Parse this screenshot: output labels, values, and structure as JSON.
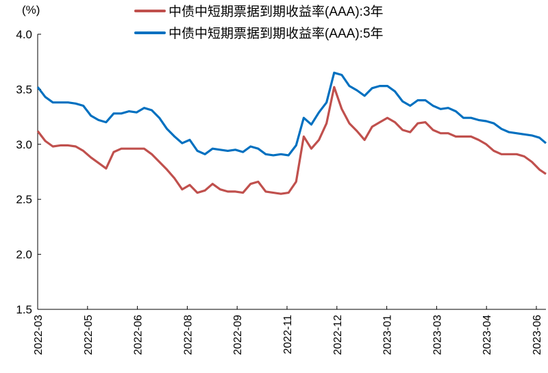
{
  "chart_data": {
    "type": "line",
    "ylabel": "(%)",
    "ylim": [
      1.5,
      4.0
    ],
    "yticks": [
      "4.0",
      "3.5",
      "3.0",
      "2.5",
      "2.0",
      "1.5"
    ],
    "xlim": [
      "2022-03-01",
      "2023-06-12"
    ],
    "xtick_labels": [
      "2022-03",
      "2022-05",
      "2022-06",
      "2022-08",
      "2022-09",
      "2022-11",
      "2022-12",
      "2023-01",
      "2023-03",
      "2023-04",
      "2023-06"
    ],
    "grid": false,
    "legend_position": "top-center",
    "x": [
      "2022-03-01",
      "2022-03-08",
      "2022-03-15",
      "2022-03-22",
      "2022-03-29",
      "2022-04-05",
      "2022-04-12",
      "2022-04-19",
      "2022-04-26",
      "2022-05-03",
      "2022-05-10",
      "2022-05-17",
      "2022-05-24",
      "2022-05-31",
      "2022-06-07",
      "2022-06-14",
      "2022-06-21",
      "2022-06-28",
      "2022-07-05",
      "2022-07-12",
      "2022-07-19",
      "2022-07-26",
      "2022-08-02",
      "2022-08-09",
      "2022-08-16",
      "2022-08-23",
      "2022-08-30",
      "2022-09-06",
      "2022-09-13",
      "2022-09-20",
      "2022-09-27",
      "2022-10-04",
      "2022-10-11",
      "2022-10-18",
      "2022-10-25",
      "2022-11-01",
      "2022-11-08",
      "2022-11-15",
      "2022-11-22",
      "2022-11-29",
      "2022-12-06",
      "2022-12-13",
      "2022-12-20",
      "2022-12-27",
      "2023-01-03",
      "2023-01-10",
      "2023-01-17",
      "2023-01-24",
      "2023-01-31",
      "2023-02-07",
      "2023-02-14",
      "2023-02-21",
      "2023-02-28",
      "2023-03-07",
      "2023-03-14",
      "2023-03-21",
      "2023-03-28",
      "2023-04-04",
      "2023-04-11",
      "2023-04-18",
      "2023-04-25",
      "2023-05-02",
      "2023-05-09",
      "2023-05-16",
      "2023-05-23",
      "2023-05-30",
      "2023-06-06",
      "2023-06-12"
    ],
    "series": [
      {
        "name": "中债中短期票据到期收益率(AAA):3年",
        "color": "#c0504d",
        "values": [
          3.12,
          3.03,
          2.98,
          2.99,
          2.99,
          2.98,
          2.94,
          2.88,
          2.83,
          2.78,
          2.93,
          2.96,
          2.96,
          2.96,
          2.96,
          2.91,
          2.84,
          2.77,
          2.69,
          2.59,
          2.63,
          2.56,
          2.58,
          2.64,
          2.59,
          2.57,
          2.57,
          2.56,
          2.64,
          2.66,
          2.57,
          2.56,
          2.55,
          2.56,
          2.66,
          3.07,
          2.96,
          3.04,
          3.19,
          3.52,
          3.32,
          3.19,
          3.12,
          3.04,
          3.16,
          3.2,
          3.24,
          3.2,
          3.13,
          3.11,
          3.19,
          3.2,
          3.13,
          3.1,
          3.1,
          3.07,
          3.07,
          3.07,
          3.04,
          3.0,
          2.94,
          2.91,
          2.91,
          2.91,
          2.89,
          2.84,
          2.77,
          2.73
        ]
      },
      {
        "name": "中债中短期票据到期收益率(AAA):5年",
        "color": "#0070c0",
        "values": [
          3.52,
          3.43,
          3.38,
          3.38,
          3.38,
          3.37,
          3.35,
          3.26,
          3.22,
          3.2,
          3.28,
          3.28,
          3.3,
          3.29,
          3.33,
          3.31,
          3.24,
          3.14,
          3.07,
          3.01,
          3.04,
          2.94,
          2.91,
          2.96,
          2.95,
          2.94,
          2.95,
          2.93,
          2.98,
          2.96,
          2.91,
          2.9,
          2.91,
          2.9,
          2.99,
          3.24,
          3.18,
          3.29,
          3.38,
          3.65,
          3.63,
          3.53,
          3.49,
          3.44,
          3.51,
          3.53,
          3.53,
          3.48,
          3.39,
          3.35,
          3.4,
          3.4,
          3.35,
          3.32,
          3.33,
          3.3,
          3.24,
          3.24,
          3.22,
          3.21,
          3.19,
          3.14,
          3.11,
          3.1,
          3.09,
          3.08,
          3.06,
          3.01
        ]
      }
    ]
  }
}
